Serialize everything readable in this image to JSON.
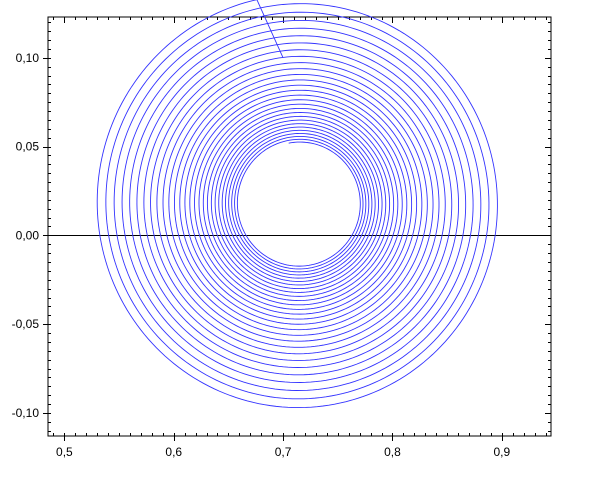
{
  "chart_data": {
    "type": "line",
    "title": "",
    "xlabel": "",
    "ylabel": "",
    "xlim": [
      0.485,
      0.945
    ],
    "ylim": [
      -0.113,
      0.123
    ],
    "x_ticks": [
      {
        "value": 0.5,
        "label": "0,5"
      },
      {
        "value": 0.6,
        "label": "0,6"
      },
      {
        "value": 0.7,
        "label": "0,7"
      },
      {
        "value": 0.8,
        "label": "0,8"
      },
      {
        "value": 0.9,
        "label": "0,9"
      }
    ],
    "y_ticks": [
      {
        "value": 0.1,
        "label": "0,10"
      },
      {
        "value": 0.05,
        "label": "0,05"
      },
      {
        "value": 0.0,
        "label": "0,00"
      },
      {
        "value": -0.05,
        "label": "-0,05"
      },
      {
        "value": -0.1,
        "label": "-0,10"
      }
    ],
    "minor_x_step": 0.01,
    "minor_y_step": 0.005,
    "reference_line_y": 0,
    "grid": false,
    "series": [
      {
        "color": "#3333ff",
        "spiral": {
          "start": [
            0.7,
            0.1
          ],
          "center": [
            0.715,
            0.018
          ],
          "direction": "counterclockwise",
          "leftmost_x": 0.53,
          "bottom_y": -0.097,
          "rightmost_x": 0.896
        }
      }
    ]
  },
  "colors": {
    "series": "#3333ff",
    "axis": "#000000",
    "background": "#ffffff"
  }
}
